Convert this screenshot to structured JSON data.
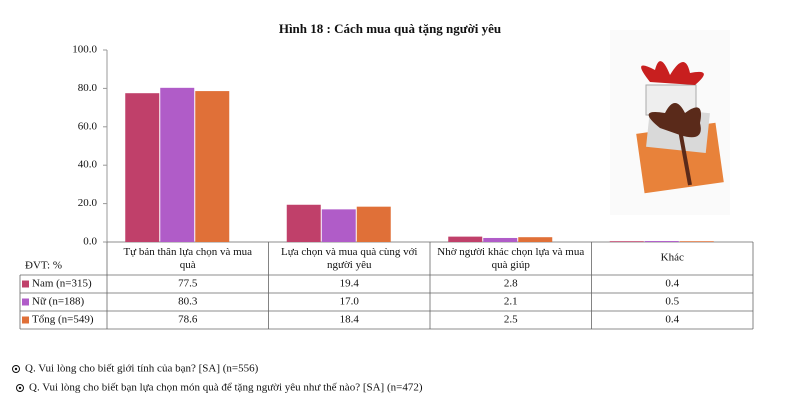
{
  "chart_data": {
    "type": "bar",
    "title": "Hình 18 : Cách mua  quà tặng người yêu",
    "unit_label": "ĐVT: %",
    "categories": [
      "Tự bản thân lựa chọn và mua quà",
      "Lựa chọn và mua quà cùng với người yêu",
      "Nhờ người khác chọn lựa và mua quà giúp",
      "Khác"
    ],
    "series": [
      {
        "name": "Nam (n=315)",
        "color": "#c0406a",
        "values": [
          77.5,
          19.4,
          2.8,
          0.4
        ],
        "value_labels": [
          "77.5",
          "19.4",
          "2.8",
          "0.4"
        ]
      },
      {
        "name": "Nữ (n=188)",
        "color": "#b05cc8",
        "values": [
          80.3,
          17.0,
          2.1,
          0.5
        ],
        "value_labels": [
          "80.3",
          "17.0",
          "2.1",
          "0.5"
        ]
      },
      {
        "name": "Tổng (n=549)",
        "color": "#e07038",
        "values": [
          78.6,
          18.4,
          2.5,
          0.4
        ],
        "value_labels": [
          "78.6",
          "18.4",
          "2.5",
          "0.4"
        ]
      }
    ],
    "ylim": [
      0,
      100
    ],
    "yticks": [
      {
        "value": 0,
        "label": "0.0"
      },
      {
        "value": 20,
        "label": "20.0"
      },
      {
        "value": 40,
        "label": "40.0"
      },
      {
        "value": 60,
        "label": "60.0"
      },
      {
        "value": 80,
        "label": "80.0"
      },
      {
        "value": 100,
        "label": "100.0"
      }
    ],
    "notes": [
      "Q. Vui lòng cho biết giới tính của bạn? [SA] (n=556)",
      "Q. Vui lòng cho biết bạn lựa chọn món quà để tặng người yêu như thế nào? [SA] (n=472)"
    ]
  }
}
